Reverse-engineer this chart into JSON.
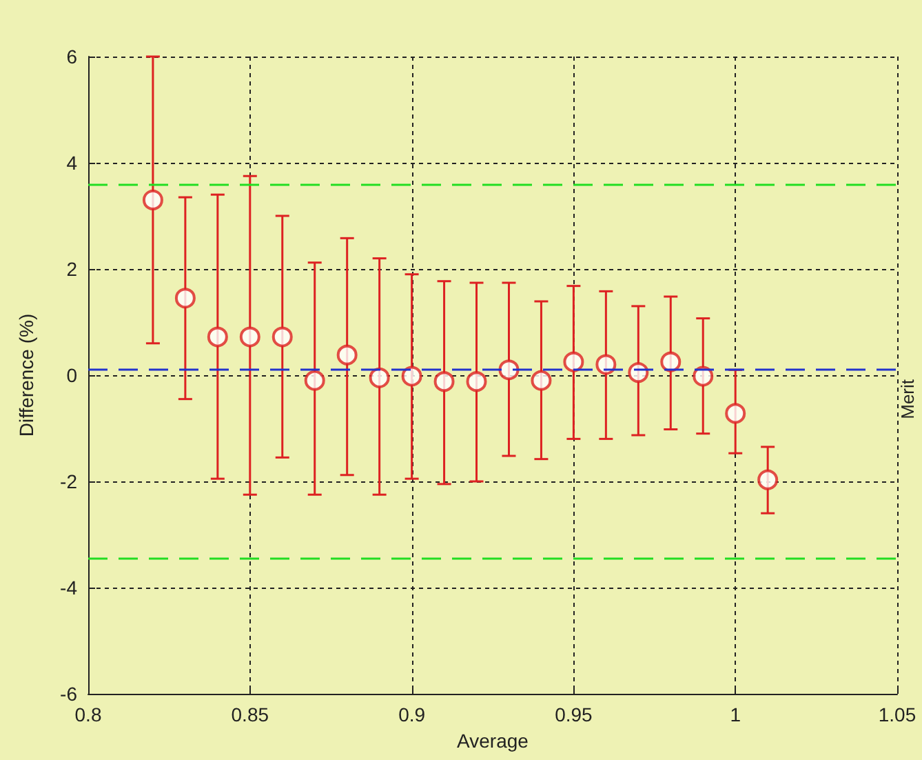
{
  "chart_data": {
    "type": "scatter",
    "xlabel": "Average",
    "ylabel": "Difference (%)",
    "x": [
      0.82,
      0.83,
      0.84,
      0.85,
      0.86,
      0.87,
      0.88,
      0.89,
      0.9,
      0.91,
      0.92,
      0.93,
      0.94,
      0.95,
      0.96,
      0.97,
      0.98,
      0.99,
      1.0,
      1.01
    ],
    "series": [
      {
        "color": "#dd2222",
        "values": [
          3.3,
          1.45,
          0.72,
          0.72,
          0.72,
          -0.1,
          0.38,
          -0.05,
          -0.02,
          -0.12,
          -0.12,
          0.1,
          -0.1,
          0.25,
          0.2,
          0.05,
          0.25,
          -0.02,
          -0.72,
          -1.97
        ],
        "errors": [
          [
            0.6,
            6.0
          ],
          [
            -0.45,
            3.35
          ],
          [
            -1.95,
            3.4
          ],
          [
            -2.25,
            3.75
          ],
          [
            -1.55,
            3.0
          ],
          [
            -2.25,
            2.12
          ],
          [
            -1.88,
            2.58
          ],
          [
            -2.25,
            2.2
          ],
          [
            -1.95,
            1.9
          ],
          [
            -2.05,
            1.77
          ],
          [
            -2.0,
            1.74
          ],
          [
            -1.52,
            1.74
          ],
          [
            -1.58,
            1.39
          ],
          [
            -1.2,
            1.68
          ],
          [
            -1.2,
            1.58
          ],
          [
            -1.13,
            1.3
          ],
          [
            -1.02,
            1.48
          ],
          [
            -1.1,
            1.07
          ],
          [
            -1.47,
            0.1
          ],
          [
            -2.6,
            -1.35
          ]
        ]
      }
    ],
    "ref_lines": [
      {
        "axis": "y",
        "value": 0.1,
        "color": "#2233cc",
        "line_style": "dashed"
      },
      {
        "axis": "y",
        "value": 3.6,
        "color": "#22dd22",
        "line_style": "dashed"
      },
      {
        "axis": "y",
        "value": -3.45,
        "color": "#22dd22",
        "line_style": "dashed"
      }
    ],
    "annotations": [
      "Merit"
    ],
    "xlim": [
      0.8,
      1.05
    ],
    "xticks": [
      0.8,
      0.85,
      0.9,
      0.95,
      1,
      1.05
    ],
    "ylim": [
      -6,
      6
    ],
    "yticks": [
      -6,
      -4,
      -2,
      0,
      2,
      4,
      6
    ],
    "grid": true,
    "marker": "circle"
  }
}
